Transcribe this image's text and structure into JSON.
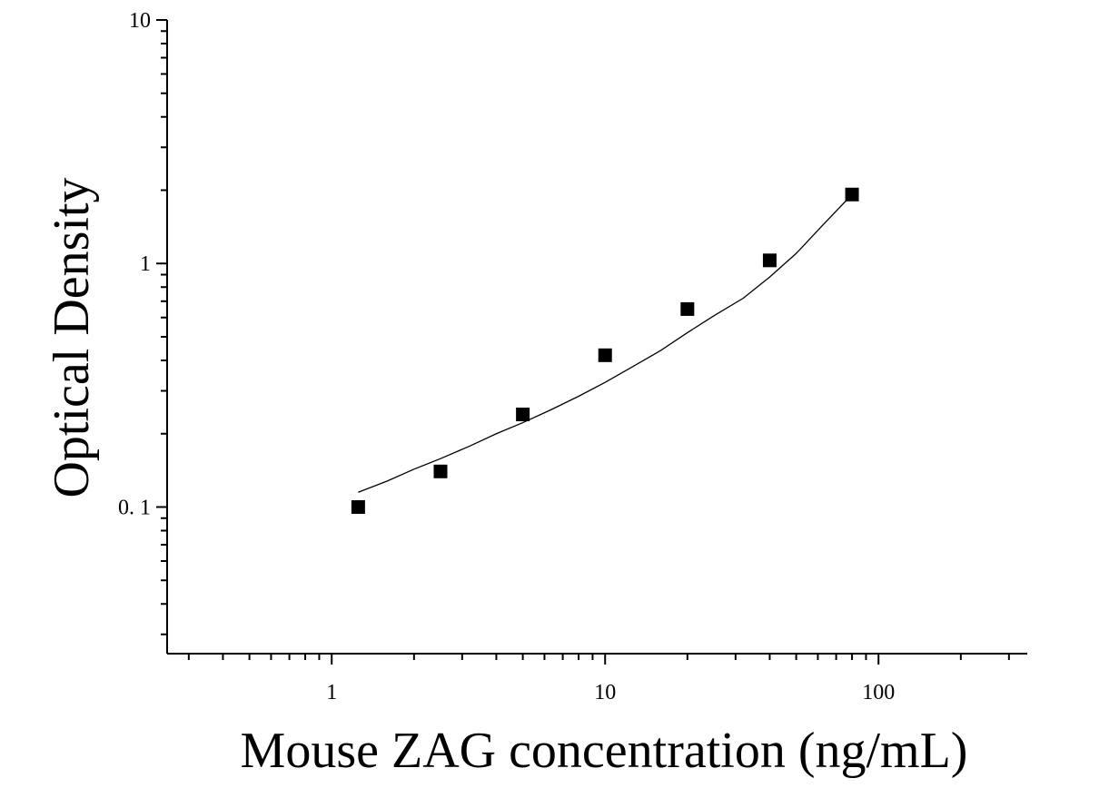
{
  "chart_data": {
    "type": "scatter",
    "title": "",
    "xlabel": "Mouse ZAG concentration (ng/mL)",
    "ylabel": "Optical Density",
    "x_scale": "log",
    "y_scale": "log",
    "xlim": [
      0.25,
      350
    ],
    "ylim": [
      0.025,
      10
    ],
    "x_ticks": [
      {
        "value": 1,
        "label": "1"
      },
      {
        "value": 10,
        "label": "10"
      },
      {
        "value": 100,
        "label": "100"
      }
    ],
    "y_ticks": [
      {
        "value": 0.1,
        "label": "0. 1"
      },
      {
        "value": 1,
        "label": "1"
      },
      {
        "value": 10,
        "label": "10"
      }
    ],
    "grid": false,
    "legend": "none",
    "series": [
      {
        "marker": "square",
        "color": "#000000",
        "x": [
          1.25,
          2.5,
          5,
          10,
          20,
          40,
          80
        ],
        "y": [
          0.1,
          0.14,
          0.24,
          0.42,
          0.65,
          1.03,
          1.92
        ]
      }
    ],
    "fit_curve": {
      "color": "#000000",
      "x": [
        1.25,
        1.6,
        2,
        2.5,
        3.2,
        4,
        5,
        6.3,
        8,
        10,
        12.5,
        16,
        20,
        25,
        32,
        40,
        50,
        63,
        80
      ],
      "y": [
        0.115,
        0.128,
        0.143,
        0.158,
        0.178,
        0.2,
        0.222,
        0.25,
        0.285,
        0.325,
        0.375,
        0.44,
        0.52,
        0.61,
        0.72,
        0.88,
        1.1,
        1.45,
        1.92
      ]
    }
  }
}
